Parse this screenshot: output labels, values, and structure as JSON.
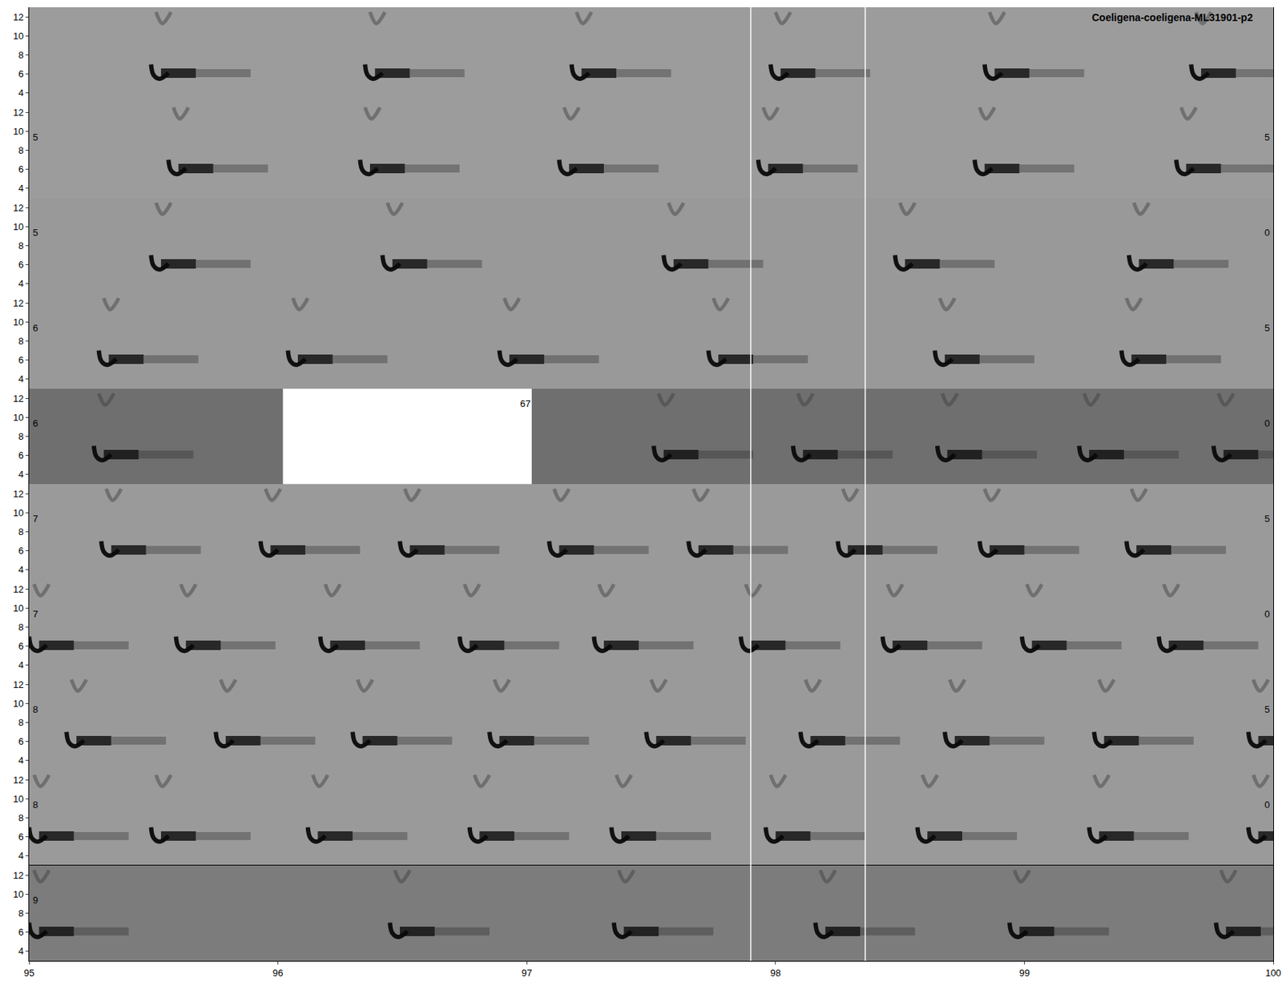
{
  "chart_data": {
    "type": "spectrogram",
    "title": "Coeligena-coeligena-ML31901-p2",
    "xlim": [
      95,
      100
    ],
    "xticks": [
      95,
      96,
      97,
      98,
      99,
      100
    ],
    "ylim": [
      3,
      13
    ],
    "yticks": [
      4,
      6,
      8,
      10,
      12
    ],
    "note_freq": 6,
    "upper_freq": 11.3,
    "note_duration": 0.4,
    "cursor_lines": [
      97.9,
      98.36
    ],
    "rows": [
      {
        "color": "#9c9c9c",
        "notes": [
          95.49,
          96.35,
          97.18,
          97.98,
          98.84,
          99.67
        ]
      },
      {
        "color": "#9c9c9c",
        "notes": [
          95.56,
          96.33,
          97.13,
          97.93,
          98.8,
          99.61
        ],
        "label_left": "5",
        "label_right": "5"
      },
      {
        "color": "#999999",
        "notes": [
          95.49,
          96.42,
          97.55,
          98.48,
          99.42
        ],
        "label_left": "5",
        "label_right": "0"
      },
      {
        "color": "#999999",
        "notes": [
          95.28,
          96.04,
          96.89,
          97.73,
          98.64,
          99.39
        ],
        "label_left": "6",
        "label_right": "5"
      },
      {
        "color": "#6f6f6f",
        "notes": [
          95.26,
          97.51,
          98.07,
          98.65,
          99.22,
          99.76
        ],
        "label_left": "6",
        "label_right": "0",
        "gap": [
          96.02,
          97.02
        ],
        "gap_label": "67"
      },
      {
        "color": "#9a9a9a",
        "notes": [
          95.29,
          95.93,
          96.49,
          97.09,
          97.65,
          98.25,
          98.82,
          99.41
        ],
        "label_left": "7",
        "label_right": "5"
      },
      {
        "color": "#9a9a9a",
        "notes": [
          95.0,
          95.59,
          96.17,
          96.73,
          97.27,
          97.86,
          98.43,
          98.99,
          99.54
        ],
        "label_left": "7",
        "label_right": "0"
      },
      {
        "color": "#9a9a9a",
        "notes": [
          95.15,
          95.75,
          96.3,
          96.85,
          97.48,
          98.1,
          98.68,
          99.28,
          99.9
        ],
        "label_left": "8",
        "label_right": "5"
      },
      {
        "color": "#9a9a9a",
        "notes": [
          95.0,
          95.49,
          96.12,
          96.77,
          97.34,
          97.96,
          98.57,
          99.26,
          99.9
        ],
        "label_left": "8",
        "label_right": "0"
      },
      {
        "color": "#7c7c7c",
        "notes": [
          95.0,
          96.45,
          97.35,
          98.16,
          98.94,
          99.77
        ],
        "label_left": "9"
      }
    ]
  }
}
